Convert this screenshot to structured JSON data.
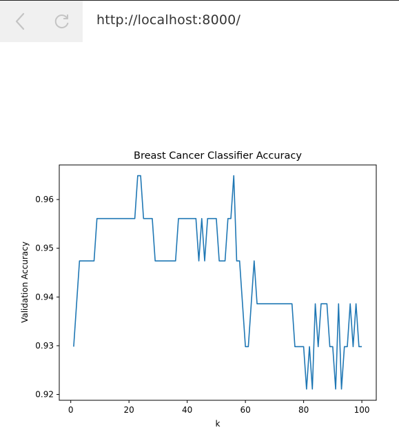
{
  "browser": {
    "url": "http://localhost:8000/",
    "icons": {
      "back": "chevron-left-icon",
      "reload": "reload-icon"
    }
  },
  "chart_data": {
    "type": "line",
    "title": "Breast Cancer Classifier Accuracy",
    "xlabel": "k",
    "ylabel": "Validation Accuracy",
    "xlim": [
      -3.95,
      104.95
    ],
    "ylim": [
      0.9188,
      0.9671
    ],
    "xticks": [
      0,
      20,
      40,
      60,
      80,
      100
    ],
    "yticks": [
      0.92,
      0.93,
      0.94,
      0.95,
      0.96
    ],
    "ytick_labels": [
      "0.92",
      "0.93",
      "0.94",
      "0.95",
      "0.96"
    ],
    "grid": false,
    "color": "#1f77b4",
    "series": [
      {
        "x": [
          1,
          2,
          3,
          4,
          5,
          6,
          7,
          8,
          9,
          10,
          11,
          12,
          13,
          14,
          15,
          16,
          17,
          18,
          19,
          20,
          21,
          22,
          23,
          24,
          25,
          26,
          27,
          28,
          29,
          30,
          31,
          32,
          33,
          34,
          35,
          36,
          37,
          38,
          39,
          40,
          41,
          42,
          43,
          44,
          45,
          46,
          47,
          48,
          49,
          50,
          51,
          52,
          53,
          54,
          55,
          56,
          57,
          58,
          59,
          60,
          61,
          62,
          63,
          64,
          65,
          66,
          67,
          68,
          69,
          70,
          71,
          72,
          73,
          74,
          75,
          76,
          77,
          78,
          79,
          80,
          81,
          82,
          83,
          84,
          85,
          86,
          87,
          88,
          89,
          90,
          91,
          92,
          93,
          94,
          95,
          96,
          97,
          98,
          99,
          100
        ],
        "values": [
          0.9298,
          0.9386,
          0.9474,
          0.9474,
          0.9474,
          0.9474,
          0.9474,
          0.9474,
          0.9561,
          0.9561,
          0.9561,
          0.9561,
          0.9561,
          0.9561,
          0.9561,
          0.9561,
          0.9561,
          0.9561,
          0.9561,
          0.9561,
          0.9561,
          0.9561,
          0.9649,
          0.9649,
          0.9561,
          0.9561,
          0.9561,
          0.9561,
          0.9474,
          0.9474,
          0.9474,
          0.9474,
          0.9474,
          0.9474,
          0.9474,
          0.9474,
          0.9561,
          0.9561,
          0.9561,
          0.9561,
          0.9561,
          0.9561,
          0.9561,
          0.9474,
          0.9561,
          0.9474,
          0.9561,
          0.9561,
          0.9561,
          0.9561,
          0.9474,
          0.9474,
          0.9474,
          0.9561,
          0.9561,
          0.9649,
          0.9474,
          0.9474,
          0.9386,
          0.9298,
          0.9298,
          0.9386,
          0.9474,
          0.9386,
          0.9386,
          0.9386,
          0.9386,
          0.9386,
          0.9386,
          0.9386,
          0.9386,
          0.9386,
          0.9386,
          0.9386,
          0.9386,
          0.9386,
          0.9298,
          0.9298,
          0.9298,
          0.9298,
          0.9211,
          0.9298,
          0.9211,
          0.9386,
          0.9298,
          0.9386,
          0.9386,
          0.9386,
          0.9298,
          0.9298,
          0.9211,
          0.9386,
          0.9211,
          0.9298,
          0.9298,
          0.9386,
          0.9298,
          0.9386,
          0.9298,
          0.9298
        ]
      }
    ]
  }
}
